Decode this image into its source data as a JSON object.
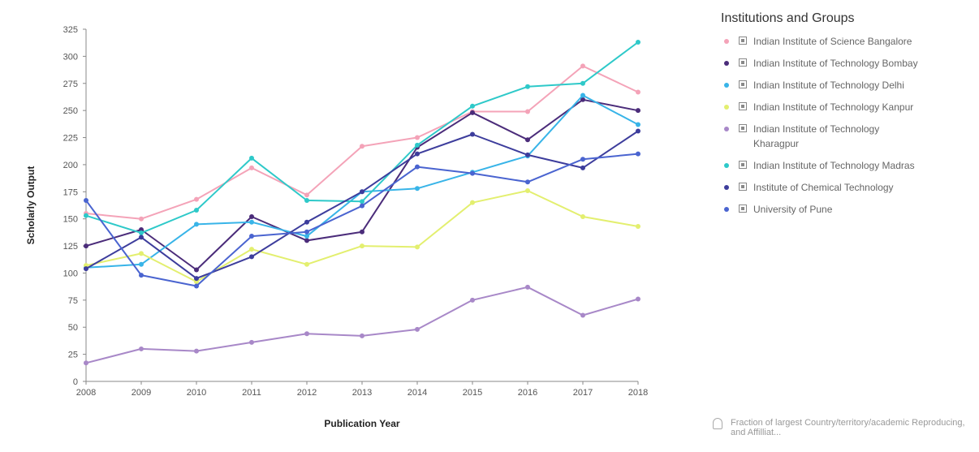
{
  "legend": {
    "title": "Institutions and Groups",
    "items": [
      {
        "label": "Indian Institute of Science Bangalore",
        "color": "#f4a3b8"
      },
      {
        "label": "Indian Institute of Technology Bombay",
        "color": "#4b2c7a"
      },
      {
        "label": "Indian Institute of Technology Delhi",
        "color": "#38b4e8"
      },
      {
        "label": "Indian Institute of Technology Kanpur",
        "color": "#e3ef6f"
      },
      {
        "label": "Indian Institute of Technology Kharagpur",
        "color": "#a888c8"
      },
      {
        "label": "Indian Institute of Technology Madras",
        "color": "#2ec9c9"
      },
      {
        "label": "Institute of Chemical Technology",
        "color": "#3d3d9c"
      },
      {
        "label": "University of Pune",
        "color": "#4a64d0"
      }
    ]
  },
  "footnote": {
    "text": "Fraction of largest Country/territory/academic Reproducing, and Affilliat..."
  },
  "chart_data": {
    "type": "line",
    "xlabel": "Publication Year",
    "ylabel": "Scholarly Output",
    "x": [
      "2008",
      "2009",
      "2010",
      "2011",
      "2012",
      "2013",
      "2014",
      "2015",
      "2016",
      "2017",
      "2018"
    ],
    "ylim": [
      0,
      325
    ],
    "yticks": [
      0,
      25,
      50,
      75,
      100,
      125,
      150,
      175,
      200,
      225,
      250,
      275,
      300,
      325
    ],
    "series": [
      {
        "name": "Indian Institute of Science Bangalore",
        "color": "#f4a3b8",
        "values": [
          155,
          150,
          168,
          197,
          172,
          217,
          225,
          249,
          249,
          291,
          267
        ]
      },
      {
        "name": "Indian Institute of Technology Bombay",
        "color": "#4b2c7a",
        "values": [
          125,
          140,
          103,
          152,
          130,
          138,
          216,
          248,
          223,
          260,
          250
        ]
      },
      {
        "name": "Indian Institute of Technology Delhi",
        "color": "#38b4e8",
        "values": [
          105,
          108,
          145,
          147,
          134,
          175,
          178,
          193,
          208,
          264,
          237
        ]
      },
      {
        "name": "Indian Institute of Technology Kanpur",
        "color": "#e3ef6f",
        "values": [
          107,
          118,
          92,
          122,
          108,
          125,
          124,
          165,
          176,
          152,
          143
        ]
      },
      {
        "name": "Indian Institute of Technology Kharagpur",
        "color": "#a888c8",
        "values": [
          17,
          30,
          28,
          36,
          44,
          42,
          48,
          75,
          87,
          61,
          76
        ]
      },
      {
        "name": "Indian Institute of Technology Madras",
        "color": "#2ec9c9",
        "values": [
          153,
          137,
          158,
          206,
          167,
          166,
          218,
          254,
          272,
          275,
          313
        ]
      },
      {
        "name": "Institute of Chemical Technology",
        "color": "#3d3d9c",
        "values": [
          104,
          133,
          95,
          115,
          147,
          175,
          210,
          228,
          209,
          197,
          231
        ]
      },
      {
        "name": "University of Pune",
        "color": "#4a64d0",
        "values": [
          167,
          98,
          88,
          134,
          138,
          162,
          198,
          192,
          184,
          205,
          210
        ]
      }
    ]
  }
}
